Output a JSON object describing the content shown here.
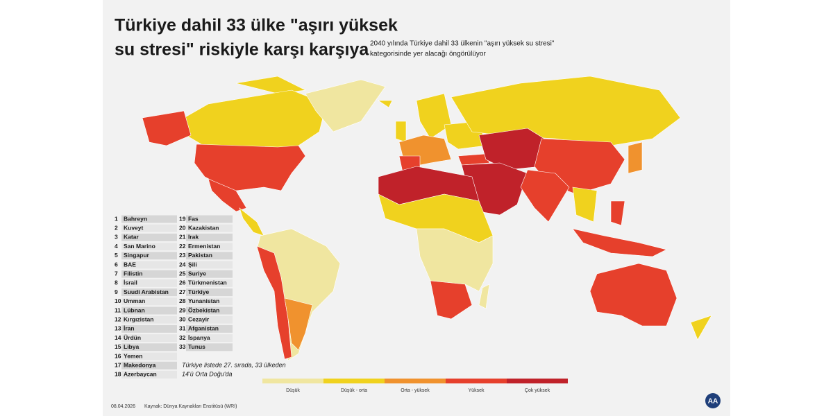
{
  "header": {
    "title_lines": [
      "Türkiye dahil 33 ülke \"aşırı yüksek",
      "su stresi\" riskiyle karşı karşıya"
    ],
    "subtitle_lines": [
      "2040 yılında Türkiye dahil 33 ülkenin \"aşırı yüksek su stresi\"",
      "kategorisinde yer alacağı öngörülüyor"
    ]
  },
  "ranking": [
    {
      "rank": 1,
      "name": "Bahreyn"
    },
    {
      "rank": 2,
      "name": "Kuveyt"
    },
    {
      "rank": 3,
      "name": "Katar"
    },
    {
      "rank": 4,
      "name": "San Marino"
    },
    {
      "rank": 5,
      "name": "Singapur"
    },
    {
      "rank": 6,
      "name": "BAE"
    },
    {
      "rank": 7,
      "name": "Filistin"
    },
    {
      "rank": 8,
      "name": "İsrail"
    },
    {
      "rank": 9,
      "name": "Suudi Arabistan"
    },
    {
      "rank": 10,
      "name": "Umman"
    },
    {
      "rank": 11,
      "name": "Lübnan"
    },
    {
      "rank": 12,
      "name": "Kırgızistan"
    },
    {
      "rank": 13,
      "name": "İran"
    },
    {
      "rank": 14,
      "name": "Ürdün"
    },
    {
      "rank": 15,
      "name": "Libya"
    },
    {
      "rank": 16,
      "name": "Yemen"
    },
    {
      "rank": 17,
      "name": "Makedonya"
    },
    {
      "rank": 18,
      "name": "Azerbaycan"
    },
    {
      "rank": 19,
      "name": "Fas"
    },
    {
      "rank": 20,
      "name": "Kazakistan"
    },
    {
      "rank": 21,
      "name": "Irak"
    },
    {
      "rank": 22,
      "name": "Ermenistan"
    },
    {
      "rank": 23,
      "name": "Pakistan"
    },
    {
      "rank": 24,
      "name": "Şili"
    },
    {
      "rank": 25,
      "name": "Suriye"
    },
    {
      "rank": 26,
      "name": "Türkmenistan"
    },
    {
      "rank": 27,
      "name": "Türkiye"
    },
    {
      "rank": 28,
      "name": "Yunanistan"
    },
    {
      "rank": 29,
      "name": "Özbekistan"
    },
    {
      "rank": 30,
      "name": "Cezayir"
    },
    {
      "rank": 31,
      "name": "Afganistan"
    },
    {
      "rank": 32,
      "name": "İspanya"
    },
    {
      "rank": 33,
      "name": "Tunus"
    }
  ],
  "note_lines": [
    "Türkiye listede 27. sırada, 33 ülkeden",
    "14'ü Orta Doğu'da"
  ],
  "legend": [
    {
      "label": "Düşük",
      "color": "#f0e6a0"
    },
    {
      "label": "Düşük - orta",
      "color": "#f0d21e"
    },
    {
      "label": "Orta - yüksek",
      "color": "#f0922e"
    },
    {
      "label": "Yüksek",
      "color": "#e6402c"
    },
    {
      "label": "Çok yüksek",
      "color": "#c0222a"
    }
  ],
  "footer": {
    "date": "08.04.2026",
    "source": "Kaynak: Dünya Kaynakları Enstitüsü (WRI)",
    "logo": "AA"
  }
}
